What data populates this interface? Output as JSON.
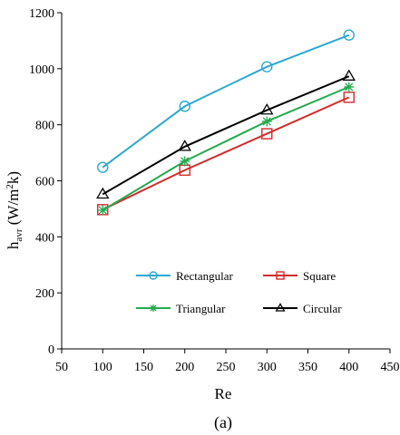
{
  "chart_data": {
    "type": "line",
    "x": [
      100,
      200,
      300,
      400
    ],
    "xlabel": "Re",
    "ylabel_main": "h",
    "ylabel_sub": "avr",
    "ylabel_unit_open": " (W/m",
    "ylabel_sup": "2",
    "ylabel_unit_close": "k)",
    "xlim": [
      50,
      450
    ],
    "ylim": [
      0,
      1200
    ],
    "xticks": [
      50,
      100,
      150,
      200,
      250,
      300,
      350,
      400,
      450
    ],
    "yticks": [
      0,
      200,
      400,
      600,
      800,
      1000,
      1200
    ],
    "grid": false,
    "legend_position": "lower-right inside plot, two columns",
    "series": [
      {
        "name": "Rectangular",
        "values": [
          648,
          866,
          1007,
          1120
        ],
        "color": "#29a8d6",
        "marker": "circle"
      },
      {
        "name": "Square",
        "values": [
          497,
          638,
          768,
          898
        ],
        "color": "#d42a2a",
        "marker": "square"
      },
      {
        "name": "Triangular",
        "values": [
          495,
          670,
          812,
          935
        ],
        "color": "#22aa4d",
        "marker": "asterisk"
      },
      {
        "name": "Circular",
        "values": [
          552,
          722,
          852,
          973
        ],
        "color": "#000000",
        "marker": "triangle"
      }
    ]
  },
  "caption": "(a)"
}
